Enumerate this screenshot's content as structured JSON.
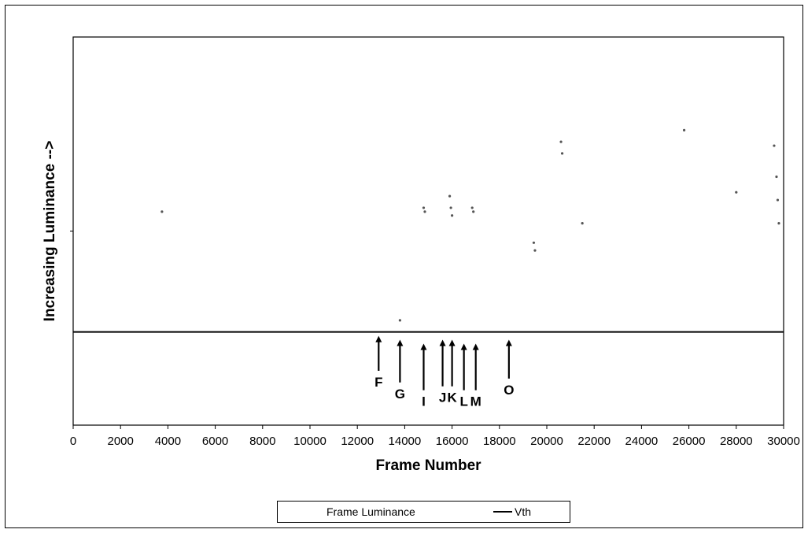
{
  "chart_data": {
    "type": "scatter",
    "title": "",
    "xlabel": "Frame Number",
    "ylabel": "Increasing Luminance  -->",
    "xlim": [
      0,
      30000
    ],
    "ylim": [
      0,
      100
    ],
    "x_ticks": [
      "0",
      "2000",
      "4000",
      "6000",
      "8000",
      "10000",
      "12000",
      "14000",
      "16000",
      "18000",
      "20000",
      "22000",
      "24000",
      "26000",
      "28000",
      "30000"
    ],
    "grid": false,
    "legend_position": "bottom",
    "series": [
      {
        "name": "Frame Luminance",
        "x": [
          3750,
          13800,
          14800,
          14850,
          15900,
          15950,
          16000,
          16850,
          16900,
          19450,
          19500,
          20600,
          20650,
          21500,
          25800,
          28000,
          29600,
          29700,
          29750,
          29800
        ],
        "y": [
          55,
          27,
          56,
          55,
          59,
          56,
          54,
          56,
          55,
          47,
          45,
          73,
          70,
          52,
          76,
          60,
          72,
          64,
          58,
          52
        ]
      },
      {
        "name": "Vth",
        "style": "line",
        "y_level": 24
      }
    ],
    "annotations": [
      {
        "label": "F",
        "x": 12900,
        "arrow_top": 23,
        "arrow_bottom": 14
      },
      {
        "label": "G",
        "x": 13800,
        "arrow_top": 22,
        "arrow_bottom": 11
      },
      {
        "label": "I",
        "x": 14800,
        "arrow_top": 21,
        "arrow_bottom": 9
      },
      {
        "label": "J",
        "x": 15600,
        "arrow_top": 22,
        "arrow_bottom": 10
      },
      {
        "label": "K",
        "x": 16000,
        "arrow_top": 22,
        "arrow_bottom": 10
      },
      {
        "label": "L",
        "x": 16500,
        "arrow_top": 21,
        "arrow_bottom": 9
      },
      {
        "label": "M",
        "x": 17000,
        "arrow_top": 21,
        "arrow_bottom": 9
      },
      {
        "label": "O",
        "x": 18400,
        "arrow_top": 22,
        "arrow_bottom": 12
      }
    ],
    "colors": {
      "axis": "#000000",
      "points": "#555555",
      "threshold": "#000000"
    }
  },
  "legend": {
    "items": [
      {
        "label": "Frame Luminance"
      },
      {
        "label": "Vth"
      }
    ]
  }
}
